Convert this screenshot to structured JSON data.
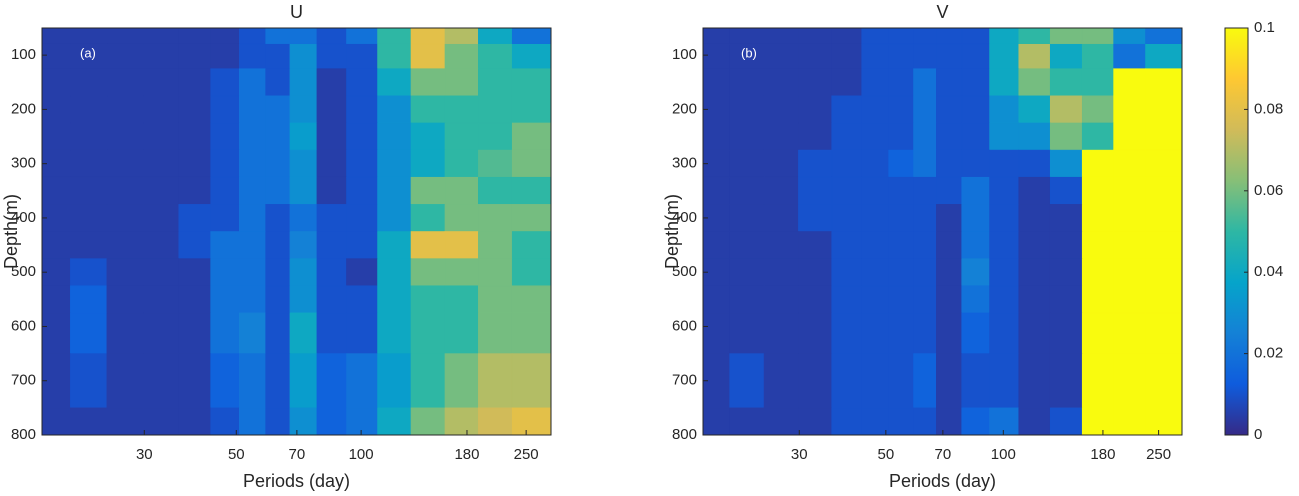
{
  "chart_data": [
    {
      "type": "heatmap",
      "title": "U",
      "annotation": "(a)",
      "xlabel": "Periods (day)",
      "ylabel": "Depth(m)",
      "xscale": "log",
      "xlim": [
        17,
        287
      ],
      "xticks": [
        30,
        50,
        70,
        100,
        180,
        250
      ],
      "ylim": [
        50,
        800
      ],
      "yreverse": true,
      "yticks": [
        100,
        200,
        300,
        400,
        500,
        600,
        700,
        800
      ],
      "x": [
        18,
        22,
        27,
        33,
        40,
        47,
        55,
        63,
        72,
        85,
        100,
        120,
        145,
        175,
        210,
        255
      ],
      "y": [
        60,
        100,
        150,
        200,
        250,
        300,
        350,
        400,
        450,
        500,
        550,
        600,
        700,
        800
      ],
      "z": [
        [
          0.005,
          0.005,
          0.005,
          0.005,
          0.005,
          0.005,
          0.01,
          0.02,
          0.02,
          0.01,
          0.02,
          0.05,
          0.08,
          0.07,
          0.04,
          0.02
        ],
        [
          0.005,
          0.005,
          0.005,
          0.005,
          0.005,
          0.005,
          0.01,
          0.01,
          0.03,
          0.01,
          0.01,
          0.05,
          0.08,
          0.06,
          0.05,
          0.04
        ],
        [
          0.005,
          0.005,
          0.005,
          0.005,
          0.005,
          0.01,
          0.02,
          0.01,
          0.03,
          0.005,
          0.01,
          0.04,
          0.06,
          0.06,
          0.05,
          0.05
        ],
        [
          0.005,
          0.005,
          0.005,
          0.005,
          0.005,
          0.01,
          0.02,
          0.02,
          0.03,
          0.005,
          0.01,
          0.03,
          0.05,
          0.05,
          0.05,
          0.05
        ],
        [
          0.005,
          0.005,
          0.005,
          0.005,
          0.005,
          0.01,
          0.02,
          0.02,
          0.035,
          0.005,
          0.01,
          0.03,
          0.04,
          0.05,
          0.05,
          0.06
        ],
        [
          0.005,
          0.005,
          0.005,
          0.005,
          0.005,
          0.01,
          0.02,
          0.02,
          0.03,
          0.005,
          0.01,
          0.03,
          0.04,
          0.05,
          0.055,
          0.06
        ],
        [
          0.005,
          0.005,
          0.005,
          0.005,
          0.005,
          0.01,
          0.02,
          0.02,
          0.03,
          0.005,
          0.01,
          0.03,
          0.06,
          0.06,
          0.05,
          0.05
        ],
        [
          0.005,
          0.005,
          0.005,
          0.005,
          0.01,
          0.01,
          0.02,
          0.01,
          0.02,
          0.01,
          0.01,
          0.03,
          0.05,
          0.06,
          0.06,
          0.06
        ],
        [
          0.005,
          0.005,
          0.005,
          0.005,
          0.01,
          0.02,
          0.02,
          0.01,
          0.025,
          0.01,
          0.01,
          0.04,
          0.08,
          0.08,
          0.06,
          0.05
        ],
        [
          0.005,
          0.01,
          0.005,
          0.005,
          0.005,
          0.02,
          0.02,
          0.01,
          0.03,
          0.01,
          0.005,
          0.04,
          0.06,
          0.06,
          0.06,
          0.05
        ],
        [
          0.005,
          0.015,
          0.005,
          0.005,
          0.005,
          0.02,
          0.02,
          0.01,
          0.03,
          0.01,
          0.01,
          0.04,
          0.05,
          0.05,
          0.06,
          0.06
        ],
        [
          0.005,
          0.015,
          0.005,
          0.005,
          0.005,
          0.02,
          0.025,
          0.01,
          0.04,
          0.01,
          0.01,
          0.04,
          0.05,
          0.05,
          0.06,
          0.06
        ],
        [
          0.005,
          0.01,
          0.005,
          0.005,
          0.005,
          0.015,
          0.02,
          0.01,
          0.035,
          0.015,
          0.02,
          0.035,
          0.05,
          0.06,
          0.07,
          0.07
        ],
        [
          0.005,
          0.005,
          0.005,
          0.005,
          0.005,
          0.01,
          0.02,
          0.01,
          0.03,
          0.015,
          0.02,
          0.04,
          0.06,
          0.07,
          0.075,
          0.08
        ]
      ]
    },
    {
      "type": "heatmap",
      "title": "V",
      "annotation": "(b)",
      "xlabel": "Periods (day)",
      "ylabel": "Depth(m)",
      "xscale": "log",
      "xlim": [
        17,
        287
      ],
      "xticks": [
        30,
        50,
        70,
        100,
        180,
        250
      ],
      "ylim": [
        50,
        800
      ],
      "yreverse": true,
      "yticks": [
        100,
        200,
        300,
        400,
        500,
        600,
        700,
        800
      ],
      "x": [
        18,
        22,
        27,
        33,
        40,
        47,
        55,
        63,
        72,
        85,
        100,
        120,
        145,
        175,
        210,
        255
      ],
      "y": [
        60,
        100,
        150,
        200,
        250,
        300,
        350,
        400,
        450,
        500,
        550,
        600,
        700,
        800
      ],
      "z": [
        [
          0.005,
          0.005,
          0.005,
          0.005,
          0.005,
          0.01,
          0.01,
          0.01,
          0.01,
          0.01,
          0.04,
          0.05,
          0.06,
          0.06,
          0.03,
          0.02
        ],
        [
          0.005,
          0.005,
          0.005,
          0.005,
          0.005,
          0.01,
          0.01,
          0.01,
          0.01,
          0.01,
          0.04,
          0.07,
          0.04,
          0.05,
          0.02,
          0.04
        ],
        [
          0.005,
          0.005,
          0.005,
          0.005,
          0.005,
          0.01,
          0.01,
          0.02,
          0.01,
          0.01,
          0.04,
          0.06,
          0.05,
          0.05,
          0.1,
          0.1
        ],
        [
          0.005,
          0.005,
          0.005,
          0.005,
          0.01,
          0.01,
          0.01,
          0.02,
          0.01,
          0.01,
          0.03,
          0.04,
          0.07,
          0.06,
          0.1,
          0.1
        ],
        [
          0.005,
          0.005,
          0.005,
          0.005,
          0.01,
          0.01,
          0.01,
          0.02,
          0.01,
          0.01,
          0.03,
          0.03,
          0.06,
          0.05,
          0.1,
          0.1
        ],
        [
          0.005,
          0.005,
          0.005,
          0.01,
          0.01,
          0.01,
          0.015,
          0.02,
          0.01,
          0.01,
          0.01,
          0.01,
          0.03,
          0.1,
          0.1,
          0.1
        ],
        [
          0.005,
          0.005,
          0.005,
          0.01,
          0.01,
          0.01,
          0.01,
          0.01,
          0.01,
          0.02,
          0.01,
          0.005,
          0.01,
          0.1,
          0.1,
          0.1
        ],
        [
          0.005,
          0.005,
          0.005,
          0.01,
          0.01,
          0.01,
          0.01,
          0.01,
          0.005,
          0.02,
          0.01,
          0.005,
          0.005,
          0.1,
          0.1,
          0.1
        ],
        [
          0.005,
          0.005,
          0.005,
          0.005,
          0.01,
          0.01,
          0.01,
          0.01,
          0.005,
          0.02,
          0.01,
          0.005,
          0.005,
          0.1,
          0.1,
          0.1
        ],
        [
          0.005,
          0.005,
          0.005,
          0.005,
          0.01,
          0.01,
          0.01,
          0.01,
          0.005,
          0.025,
          0.01,
          0.005,
          0.005,
          0.1,
          0.1,
          0.1
        ],
        [
          0.005,
          0.005,
          0.005,
          0.005,
          0.01,
          0.01,
          0.01,
          0.01,
          0.005,
          0.02,
          0.01,
          0.005,
          0.005,
          0.1,
          0.1,
          0.1
        ],
        [
          0.005,
          0.005,
          0.005,
          0.005,
          0.01,
          0.01,
          0.01,
          0.01,
          0.005,
          0.015,
          0.01,
          0.005,
          0.005,
          0.1,
          0.1,
          0.1
        ],
        [
          0.005,
          0.01,
          0.005,
          0.005,
          0.01,
          0.01,
          0.01,
          0.015,
          0.005,
          0.01,
          0.01,
          0.005,
          0.005,
          0.1,
          0.1,
          0.1
        ],
        [
          0.005,
          0.005,
          0.005,
          0.005,
          0.01,
          0.01,
          0.01,
          0.01,
          0.005,
          0.015,
          0.02,
          0.005,
          0.01,
          0.1,
          0.1,
          0.1
        ]
      ]
    },
    {
      "type": "colorbar",
      "clim": [
        0,
        0.1
      ],
      "ticks": [
        0,
        0.02,
        0.04,
        0.06,
        0.08,
        0.1
      ],
      "colormap": [
        "#352a87",
        "#0f5cdd",
        "#1481d6",
        "#06a4ca",
        "#2eb7a4",
        "#87bf77",
        "#d1bb59",
        "#fec832",
        "#f9fb0e"
      ]
    }
  ]
}
